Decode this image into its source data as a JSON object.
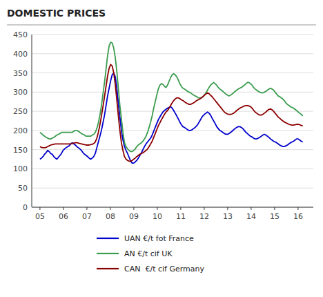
{
  "chart_data": {
    "type": "line",
    "title": "DOMESTIC PRICES",
    "x": [
      2005,
      2005.0655,
      2005.131,
      2005.1965,
      2005.262,
      2005.3275,
      2005.393,
      2005.4585,
      2005.524,
      2005.5895,
      2005.655,
      2005.7205,
      2005.786,
      2005.8515,
      2005.917,
      2005.9825,
      2006.048,
      2006.1135,
      2006.1789,
      2006.2444,
      2006.3099,
      2006.3754,
      2006.4409,
      2006.5064,
      2006.5719,
      2006.6374,
      2006.7029,
      2006.7684,
      2006.8339,
      2006.8994,
      2006.9649,
      2007.0304,
      2007.0959,
      2007.1614,
      2007.2269,
      2007.2924,
      2007.3579,
      2007.4234,
      2007.4889,
      2007.5544,
      2007.6199,
      2007.6854,
      2007.7509,
      2007.8164,
      2007.8819,
      2007.9474,
      2008.0129,
      2008.0784,
      2008.1439,
      2008.2094,
      2008.2749,
      2008.3404,
      2008.4058,
      2008.4713,
      2008.5368,
      2008.6023,
      2008.6678,
      2008.7333,
      2008.7988,
      2008.8643,
      2008.9298,
      2008.9953,
      2009.0608,
      2009.1263,
      2009.1918,
      2009.2573,
      2009.3228,
      2009.3883,
      2009.4538,
      2009.5193,
      2009.5848,
      2009.6503,
      2009.7158,
      2009.7813,
      2009.8468,
      2009.9123,
      2009.9778,
      2010.0433,
      2010.1088,
      2010.1743,
      2010.2398,
      2010.3053,
      2010.3708,
      2010.4363,
      2010.5018,
      2010.5673,
      2010.6327,
      2010.6982,
      2010.7637,
      2010.8292,
      2010.8947,
      2010.9602,
      2011.0257,
      2011.0912,
      2011.1567,
      2011.2222,
      2011.2877,
      2011.3532,
      2011.4187,
      2011.4842,
      2011.5497,
      2011.6152,
      2011.6807,
      2011.7462,
      2011.8117,
      2011.8772,
      2011.9427,
      2012.0082,
      2012.0737,
      2012.1392,
      2012.2047,
      2012.2702,
      2012.3357,
      2012.4012,
      2012.4667,
      2012.5322,
      2012.5977,
      2012.6632,
      2012.7287,
      2012.7942,
      2012.8596,
      2012.9251,
      2012.9906,
      2013.0561,
      2013.1216,
      2013.1871,
      2013.2526,
      2013.3181,
      2013.3836,
      2013.4491,
      2013.5146,
      2013.5801,
      2013.6456,
      2013.7111,
      2013.7766,
      2013.8421,
      2013.9076,
      2013.9731,
      2014.0386,
      2014.1041,
      2014.1696,
      2014.2351,
      2014.3006,
      2014.3661,
      2014.4316,
      2014.4971,
      2014.5626,
      2014.6281,
      2014.6936,
      2014.7591,
      2014.8246,
      2014.8901,
      2014.9556,
      2015.0211,
      2015.0865,
      2015.152,
      2015.2175,
      2015.283,
      2015.3485,
      2015.414,
      2015.4795,
      2015.545,
      2015.6105,
      2015.676,
      2015.7415,
      2015.807,
      2015.8725,
      2015.938,
      2016.0035,
      2016.069,
      2016.1345,
      2016.2
    ],
    "xlim": [
      2004.65,
      2016.65
    ],
    "xticks": [
      {
        "value": 2005,
        "label": "05"
      },
      {
        "value": 2006,
        "label": "06"
      },
      {
        "value": 2007,
        "label": "07"
      },
      {
        "value": 2008,
        "label": "08"
      },
      {
        "value": 2009,
        "label": "09"
      },
      {
        "value": 2010,
        "label": "10"
      },
      {
        "value": 2011,
        "label": "11"
      },
      {
        "value": 2012,
        "label": "12"
      },
      {
        "value": 2013,
        "label": "13"
      },
      {
        "value": 2014,
        "label": "14"
      },
      {
        "value": 2015,
        "label": "15"
      },
      {
        "value": 2016,
        "label": "16"
      }
    ],
    "ylim": [
      0,
      450
    ],
    "yticks": [
      0,
      50,
      100,
      150,
      200,
      250,
      300,
      350,
      400,
      450
    ],
    "grid": true,
    "series": [
      {
        "name": "UAN €/t fot France",
        "color": "#0000cc",
        "values": [
          125,
          128,
          132,
          138,
          142,
          148,
          145,
          140,
          138,
          132,
          128,
          125,
          130,
          135,
          140,
          148,
          152,
          155,
          158,
          160,
          165,
          168,
          165,
          162,
          158,
          155,
          152,
          148,
          142,
          138,
          135,
          132,
          128,
          125,
          128,
          132,
          140,
          155,
          170,
          185,
          200,
          220,
          240,
          265,
          290,
          310,
          330,
          345,
          350,
          340,
          310,
          270,
          235,
          200,
          175,
          158,
          148,
          140,
          130,
          120,
          115,
          115,
          118,
          122,
          128,
          135,
          142,
          150,
          158,
          165,
          170,
          175,
          180,
          188,
          198,
          208,
          218,
          228,
          235,
          242,
          248,
          252,
          255,
          258,
          260,
          262,
          258,
          252,
          245,
          238,
          230,
          222,
          215,
          210,
          208,
          205,
          202,
          200,
          200,
          202,
          205,
          208,
          212,
          218,
          225,
          232,
          238,
          242,
          245,
          248,
          245,
          240,
          232,
          225,
          218,
          210,
          205,
          200,
          198,
          195,
          192,
          190,
          190,
          192,
          195,
          198,
          202,
          205,
          208,
          210,
          210,
          208,
          205,
          200,
          195,
          192,
          188,
          185,
          183,
          180,
          178,
          178,
          180,
          182,
          185,
          188,
          190,
          188,
          185,
          182,
          178,
          175,
          172,
          170,
          168,
          165,
          162,
          160,
          158,
          158,
          160,
          162,
          165,
          168,
          170,
          172,
          175,
          178,
          178,
          175,
          172,
          170
        ]
      },
      {
        "name": "AN €/t cif UK",
        "color": "#3a9c4e",
        "values": [
          195,
          192,
          188,
          185,
          182,
          180,
          178,
          178,
          180,
          182,
          185,
          188,
          190,
          192,
          195,
          195,
          195,
          195,
          195,
          195,
          195,
          195,
          198,
          200,
          200,
          198,
          195,
          192,
          190,
          188,
          185,
          185,
          185,
          185,
          188,
          190,
          195,
          205,
          220,
          240,
          265,
          295,
          325,
          360,
          395,
          420,
          430,
          428,
          415,
          390,
          355,
          310,
          265,
          230,
          195,
          168,
          158,
          152,
          148,
          145,
          145,
          148,
          152,
          158,
          162,
          165,
          168,
          172,
          178,
          185,
          195,
          208,
          222,
          238,
          258,
          275,
          292,
          308,
          318,
          322,
          320,
          315,
          312,
          318,
          328,
          338,
          345,
          348,
          345,
          340,
          332,
          322,
          315,
          310,
          308,
          305,
          302,
          300,
          298,
          295,
          292,
          290,
          288,
          285,
          285,
          285,
          288,
          292,
          298,
          305,
          312,
          318,
          322,
          325,
          322,
          318,
          312,
          308,
          305,
          302,
          298,
          295,
          292,
          290,
          292,
          295,
          298,
          302,
          305,
          308,
          310,
          312,
          315,
          318,
          322,
          325,
          325,
          322,
          318,
          312,
          308,
          305,
          302,
          300,
          298,
          298,
          300,
          302,
          305,
          308,
          310,
          308,
          305,
          300,
          295,
          290,
          288,
          285,
          282,
          278,
          272,
          268,
          265,
          262,
          260,
          258,
          255,
          252,
          248,
          245,
          242,
          238
        ]
      },
      {
        "name": "CAN  €/t cif Germany",
        "color": "#8b0000",
        "values": [
          158,
          156,
          155,
          155,
          156,
          158,
          160,
          162,
          163,
          164,
          165,
          165,
          165,
          165,
          165,
          165,
          165,
          165,
          165,
          165,
          165,
          166,
          167,
          168,
          168,
          167,
          166,
          165,
          164,
          163,
          162,
          162,
          162,
          163,
          164,
          166,
          170,
          180,
          195,
          215,
          238,
          262,
          288,
          315,
          342,
          362,
          372,
          368,
          350,
          320,
          280,
          238,
          200,
          168,
          148,
          132,
          125,
          122,
          120,
          120,
          122,
          125,
          128,
          132,
          135,
          138,
          140,
          142,
          145,
          148,
          152,
          158,
          165,
          172,
          182,
          192,
          202,
          212,
          220,
          228,
          235,
          242,
          248,
          252,
          258,
          265,
          272,
          278,
          282,
          285,
          285,
          283,
          280,
          278,
          275,
          272,
          270,
          268,
          268,
          270,
          272,
          275,
          278,
          280,
          282,
          285,
          288,
          292,
          295,
          298,
          296,
          292,
          288,
          283,
          278,
          273,
          268,
          263,
          258,
          253,
          248,
          245,
          243,
          242,
          242,
          243,
          245,
          248,
          252,
          255,
          258,
          260,
          262,
          264,
          265,
          265,
          264,
          262,
          258,
          253,
          248,
          245,
          242,
          240,
          240,
          242,
          245,
          248,
          252,
          255,
          256,
          254,
          250,
          245,
          240,
          235,
          232,
          228,
          225,
          222,
          220,
          218,
          216,
          215,
          214,
          214,
          215,
          216,
          216,
          215,
          213,
          212
        ]
      }
    ]
  }
}
